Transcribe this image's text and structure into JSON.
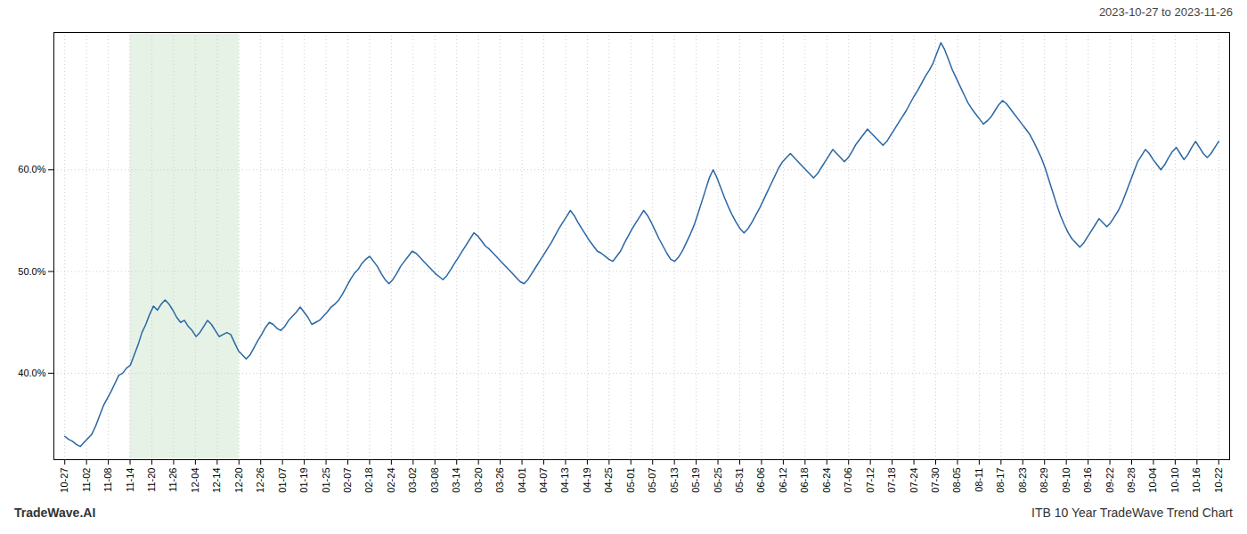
{
  "chart_data": {
    "type": "line",
    "subtitle": "2023-10-27 to 2023-11-26",
    "caption": [
      "TradeWave.AI",
      "ITB 10 Year TradeWave Trend Chart"
    ],
    "color": "#2966a3",
    "highlight": {
      "x": [
        3,
        8
      ],
      "color": "#d6ead6"
    },
    "grid": true,
    "xlim": [
      -0.5,
      53.5
    ],
    "xticks": [
      {
        "value": 0,
        "label": "10-27"
      },
      {
        "value": 1,
        "label": "11-02"
      },
      {
        "value": 2,
        "label": "11-08"
      },
      {
        "value": 3,
        "label": "11-14"
      },
      {
        "value": 4,
        "label": "11-20"
      },
      {
        "value": 5,
        "label": "11-26"
      },
      {
        "value": 6,
        "label": "12-04"
      },
      {
        "value": 7,
        "label": "12-14"
      },
      {
        "value": 8,
        "label": "12-20"
      },
      {
        "value": 9,
        "label": "12-26"
      },
      {
        "value": 10,
        "label": "01-07"
      },
      {
        "value": 11,
        "label": "01-19"
      },
      {
        "value": 12,
        "label": "01-25"
      },
      {
        "value": 13,
        "label": "02-07"
      },
      {
        "value": 14,
        "label": "02-18"
      },
      {
        "value": 15,
        "label": "02-24"
      },
      {
        "value": 16,
        "label": "03-02"
      },
      {
        "value": 17,
        "label": "03-08"
      },
      {
        "value": 18,
        "label": "03-14"
      },
      {
        "value": 19,
        "label": "03-20"
      },
      {
        "value": 20,
        "label": "03-26"
      },
      {
        "value": 21,
        "label": "04-01"
      },
      {
        "value": 22,
        "label": "04-07"
      },
      {
        "value": 23,
        "label": "04-13"
      },
      {
        "value": 24,
        "label": "04-19"
      },
      {
        "value": 25,
        "label": "04-25"
      },
      {
        "value": 26,
        "label": "05-01"
      },
      {
        "value": 27,
        "label": "05-07"
      },
      {
        "value": 28,
        "label": "05-13"
      },
      {
        "value": 29,
        "label": "05-19"
      },
      {
        "value": 30,
        "label": "05-25"
      },
      {
        "value": 31,
        "label": "05-31"
      },
      {
        "value": 32,
        "label": "06-06"
      },
      {
        "value": 33,
        "label": "06-12"
      },
      {
        "value": 34,
        "label": "06-18"
      },
      {
        "value": 35,
        "label": "06-24"
      },
      {
        "value": 36,
        "label": "07-06"
      },
      {
        "value": 37,
        "label": "07-12"
      },
      {
        "value": 38,
        "label": "07-18"
      },
      {
        "value": 39,
        "label": "07-24"
      },
      {
        "value": 40,
        "label": "07-30"
      },
      {
        "value": 41,
        "label": "08-05"
      },
      {
        "value": 42,
        "label": "08-11"
      },
      {
        "value": 43,
        "label": "08-17"
      },
      {
        "value": 44,
        "label": "08-23"
      },
      {
        "value": 45,
        "label": "08-29"
      },
      {
        "value": 46,
        "label": "09-10"
      },
      {
        "value": 47,
        "label": "09-16"
      },
      {
        "value": 48,
        "label": "09-22"
      },
      {
        "value": 49,
        "label": "09-28"
      },
      {
        "value": 50,
        "label": "10-04"
      },
      {
        "value": 51,
        "label": "10-10"
      },
      {
        "value": 52,
        "label": "10-16"
      },
      {
        "value": 53,
        "label": "10-22"
      }
    ],
    "ylim": [
      0.315,
      0.735
    ],
    "yticks": [
      {
        "value": 0.4,
        "label": "40.0%"
      },
      {
        "value": 0.5,
        "label": "50.0%"
      },
      {
        "value": 0.6,
        "label": "60.0%"
      }
    ],
    "values": [
      0.338,
      0.335,
      0.333,
      0.33,
      0.328,
      0.332,
      0.336,
      0.34,
      0.348,
      0.358,
      0.368,
      0.375,
      0.382,
      0.39,
      0.398,
      0.4,
      0.405,
      0.408,
      0.418,
      0.428,
      0.44,
      0.448,
      0.458,
      0.466,
      0.462,
      0.468,
      0.472,
      0.468,
      0.462,
      0.455,
      0.45,
      0.452,
      0.446,
      0.442,
      0.436,
      0.44,
      0.446,
      0.452,
      0.448,
      0.442,
      0.436,
      0.438,
      0.44,
      0.438,
      0.43,
      0.422,
      0.418,
      0.414,
      0.418,
      0.425,
      0.432,
      0.438,
      0.445,
      0.45,
      0.448,
      0.444,
      0.442,
      0.446,
      0.452,
      0.456,
      0.46,
      0.465,
      0.46,
      0.455,
      0.448,
      0.45,
      0.452,
      0.456,
      0.46,
      0.465,
      0.468,
      0.472,
      0.478,
      0.485,
      0.492,
      0.498,
      0.502,
      0.508,
      0.512,
      0.515,
      0.51,
      0.505,
      0.498,
      0.492,
      0.488,
      0.492,
      0.498,
      0.505,
      0.51,
      0.515,
      0.52,
      0.518,
      0.514,
      0.51,
      0.506,
      0.502,
      0.498,
      0.495,
      0.492,
      0.496,
      0.502,
      0.508,
      0.514,
      0.52,
      0.526,
      0.532,
      0.538,
      0.535,
      0.53,
      0.525,
      0.522,
      0.518,
      0.514,
      0.51,
      0.506,
      0.502,
      0.498,
      0.494,
      0.49,
      0.488,
      0.492,
      0.498,
      0.504,
      0.51,
      0.516,
      0.522,
      0.528,
      0.535,
      0.542,
      0.548,
      0.554,
      0.56,
      0.555,
      0.548,
      0.542,
      0.536,
      0.53,
      0.525,
      0.52,
      0.518,
      0.515,
      0.512,
      0.51,
      0.515,
      0.52,
      0.528,
      0.535,
      0.542,
      0.548,
      0.554,
      0.56,
      0.555,
      0.548,
      0.54,
      0.532,
      0.525,
      0.518,
      0.512,
      0.51,
      0.514,
      0.52,
      0.528,
      0.536,
      0.545,
      0.556,
      0.568,
      0.58,
      0.592,
      0.6,
      0.592,
      0.582,
      0.572,
      0.563,
      0.555,
      0.548,
      0.542,
      0.538,
      0.542,
      0.548,
      0.555,
      0.562,
      0.57,
      0.578,
      0.586,
      0.594,
      0.602,
      0.608,
      0.612,
      0.616,
      0.612,
      0.608,
      0.604,
      0.6,
      0.596,
      0.592,
      0.596,
      0.602,
      0.608,
      0.614,
      0.62,
      0.616,
      0.612,
      0.608,
      0.612,
      0.618,
      0.625,
      0.63,
      0.635,
      0.64,
      0.636,
      0.632,
      0.628,
      0.624,
      0.628,
      0.634,
      0.64,
      0.646,
      0.652,
      0.658,
      0.665,
      0.672,
      0.678,
      0.685,
      0.692,
      0.698,
      0.705,
      0.715,
      0.725,
      0.718,
      0.708,
      0.698,
      0.69,
      0.682,
      0.674,
      0.666,
      0.66,
      0.655,
      0.65,
      0.645,
      0.648,
      0.652,
      0.658,
      0.664,
      0.668,
      0.665,
      0.66,
      0.655,
      0.65,
      0.645,
      0.64,
      0.635,
      0.628,
      0.62,
      0.612,
      0.602,
      0.59,
      0.578,
      0.566,
      0.555,
      0.546,
      0.538,
      0.532,
      0.528,
      0.524,
      0.528,
      0.534,
      0.54,
      0.546,
      0.552,
      0.548,
      0.544,
      0.548,
      0.554,
      0.56,
      0.568,
      0.578,
      0.588,
      0.598,
      0.608,
      0.614,
      0.62,
      0.616,
      0.61,
      0.605,
      0.6,
      0.605,
      0.612,
      0.618,
      0.622,
      0.616,
      0.61,
      0.615,
      0.622,
      0.628,
      0.622,
      0.616,
      0.612,
      0.616,
      0.622,
      0.628
    ]
  }
}
